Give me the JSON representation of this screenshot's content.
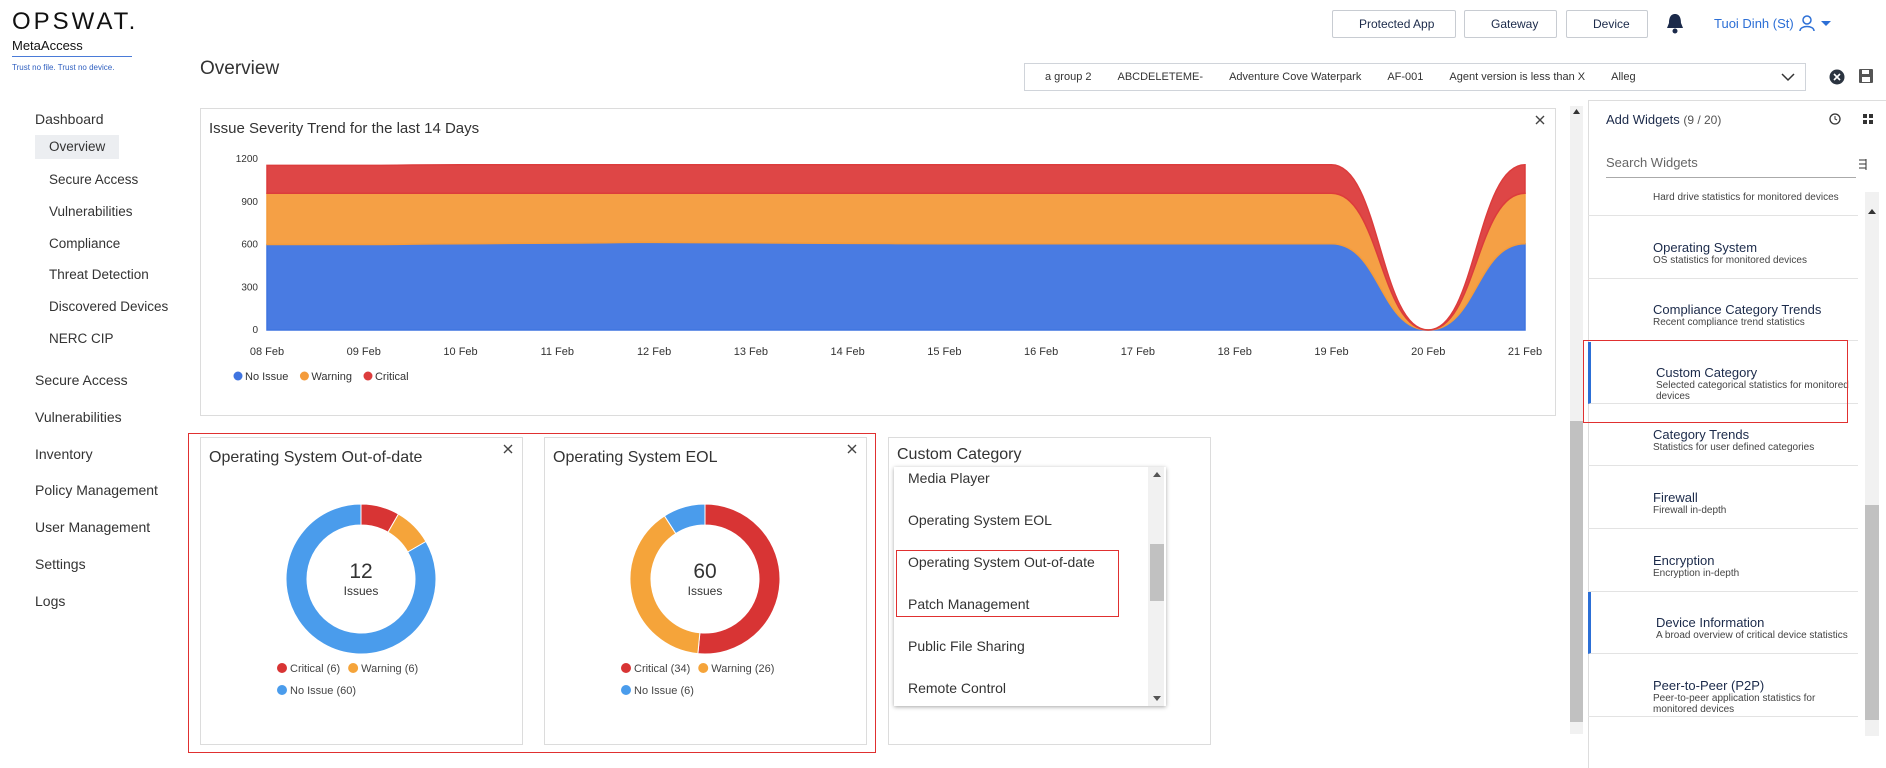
{
  "logo": {
    "brand": "OPSWAT.",
    "product": "MetaAccess",
    "tagline": "Trust no file. Trust no device."
  },
  "header": {
    "buttons": [
      "Protected App",
      "Gateway",
      "Device"
    ],
    "user": "Tuoi Dinh (St)"
  },
  "nav": {
    "dashboard": "Dashboard",
    "dashboard_items": [
      "Overview",
      "Secure Access",
      "Vulnerabilities",
      "Compliance",
      "Threat Detection",
      "Discovered Devices",
      "NERC CIP"
    ],
    "items": [
      "Secure Access",
      "Vulnerabilities",
      "Inventory",
      "Policy Management",
      "User Management",
      "Settings",
      "Logs"
    ]
  },
  "page_title": "Overview",
  "filters": [
    "a group 2",
    "ABCDELETEME-",
    "Adventure Cove Waterpark",
    "AF-001",
    "Agent version is less than X",
    "Alleg"
  ],
  "chart_data": [
    {
      "type": "area",
      "title": "Issue Severity Trend for the last 14 Days",
      "categories": [
        "08 Feb",
        "09 Feb",
        "10 Feb",
        "11 Feb",
        "12 Feb",
        "13 Feb",
        "14 Feb",
        "15 Feb",
        "16 Feb",
        "17 Feb",
        "18 Feb",
        "19 Feb",
        "20 Feb",
        "21 Feb"
      ],
      "series": [
        {
          "name": "No Issue",
          "color": "#3f74e0",
          "values": [
            600,
            600,
            605,
            610,
            615,
            612,
            608,
            605,
            605,
            605,
            605,
            605,
            0,
            605
          ]
        },
        {
          "name": "Warning",
          "color": "#f49b3b",
          "values": [
            360,
            360,
            355,
            350,
            345,
            348,
            352,
            355,
            355,
            355,
            355,
            355,
            0,
            355
          ]
        },
        {
          "name": "Critical",
          "color": "#dc3c3c",
          "values": [
            195,
            195,
            200,
            200,
            200,
            200,
            200,
            200,
            200,
            200,
            200,
            200,
            0,
            200
          ]
        }
      ],
      "stacked": true,
      "ylim": [
        0,
        1200
      ],
      "yticks": [
        0,
        300,
        600,
        900,
        1200
      ],
      "legend": "bottom-left"
    },
    {
      "type": "donut",
      "title": "Operating System Out-of-date",
      "values": [
        6,
        6,
        60
      ],
      "value_labels": [
        "Critical (6)",
        "Warning (6)",
        "No Issue (60)"
      ],
      "colors": [
        "#d83434",
        "#f5a43a",
        "#4a9cec"
      ],
      "center_value": 12,
      "center_label": "Issues"
    },
    {
      "type": "donut",
      "title": "Operating System EOL",
      "values": [
        34,
        26,
        6
      ],
      "value_labels": [
        "Critical (34)",
        "Warning (26)",
        "No Issue (6)"
      ],
      "colors": [
        "#d83434",
        "#f5a43a",
        "#4a9cec"
      ],
      "center_value": 60,
      "center_label": "Issues"
    }
  ],
  "custom_category": {
    "title": "Custom Category",
    "items": [
      "Media Player",
      "Operating System EOL",
      "Operating System Out-of-date",
      "Patch Management",
      "Public File Sharing",
      "Remote Control"
    ]
  },
  "widgets_panel": {
    "title": "Add Widgets",
    "count": "(9 / 20)",
    "search_placeholder": "Search Widgets",
    "widgets": [
      {
        "description": "Hard drive statistics for monitored devices"
      },
      {
        "name": "Operating System",
        "description": "OS statistics for monitored devices"
      },
      {
        "name": "Compliance Category Trends",
        "description": "Recent compliance trend statistics"
      },
      {
        "name": "Custom Category",
        "description": "Selected categorical statistics for monitored devices"
      },
      {
        "name": "Category Trends",
        "description": "Statistics for user defined categories"
      },
      {
        "name": "Firewall",
        "description": "Firewall in-depth"
      },
      {
        "name": "Encryption",
        "description": "Encryption in-depth"
      },
      {
        "name": "Device Information",
        "description": "A broad overview of critical device statistics"
      },
      {
        "name": "Peer-to-Peer (P2P)",
        "description": "Peer-to-peer application statistics for monitored devices"
      }
    ]
  }
}
